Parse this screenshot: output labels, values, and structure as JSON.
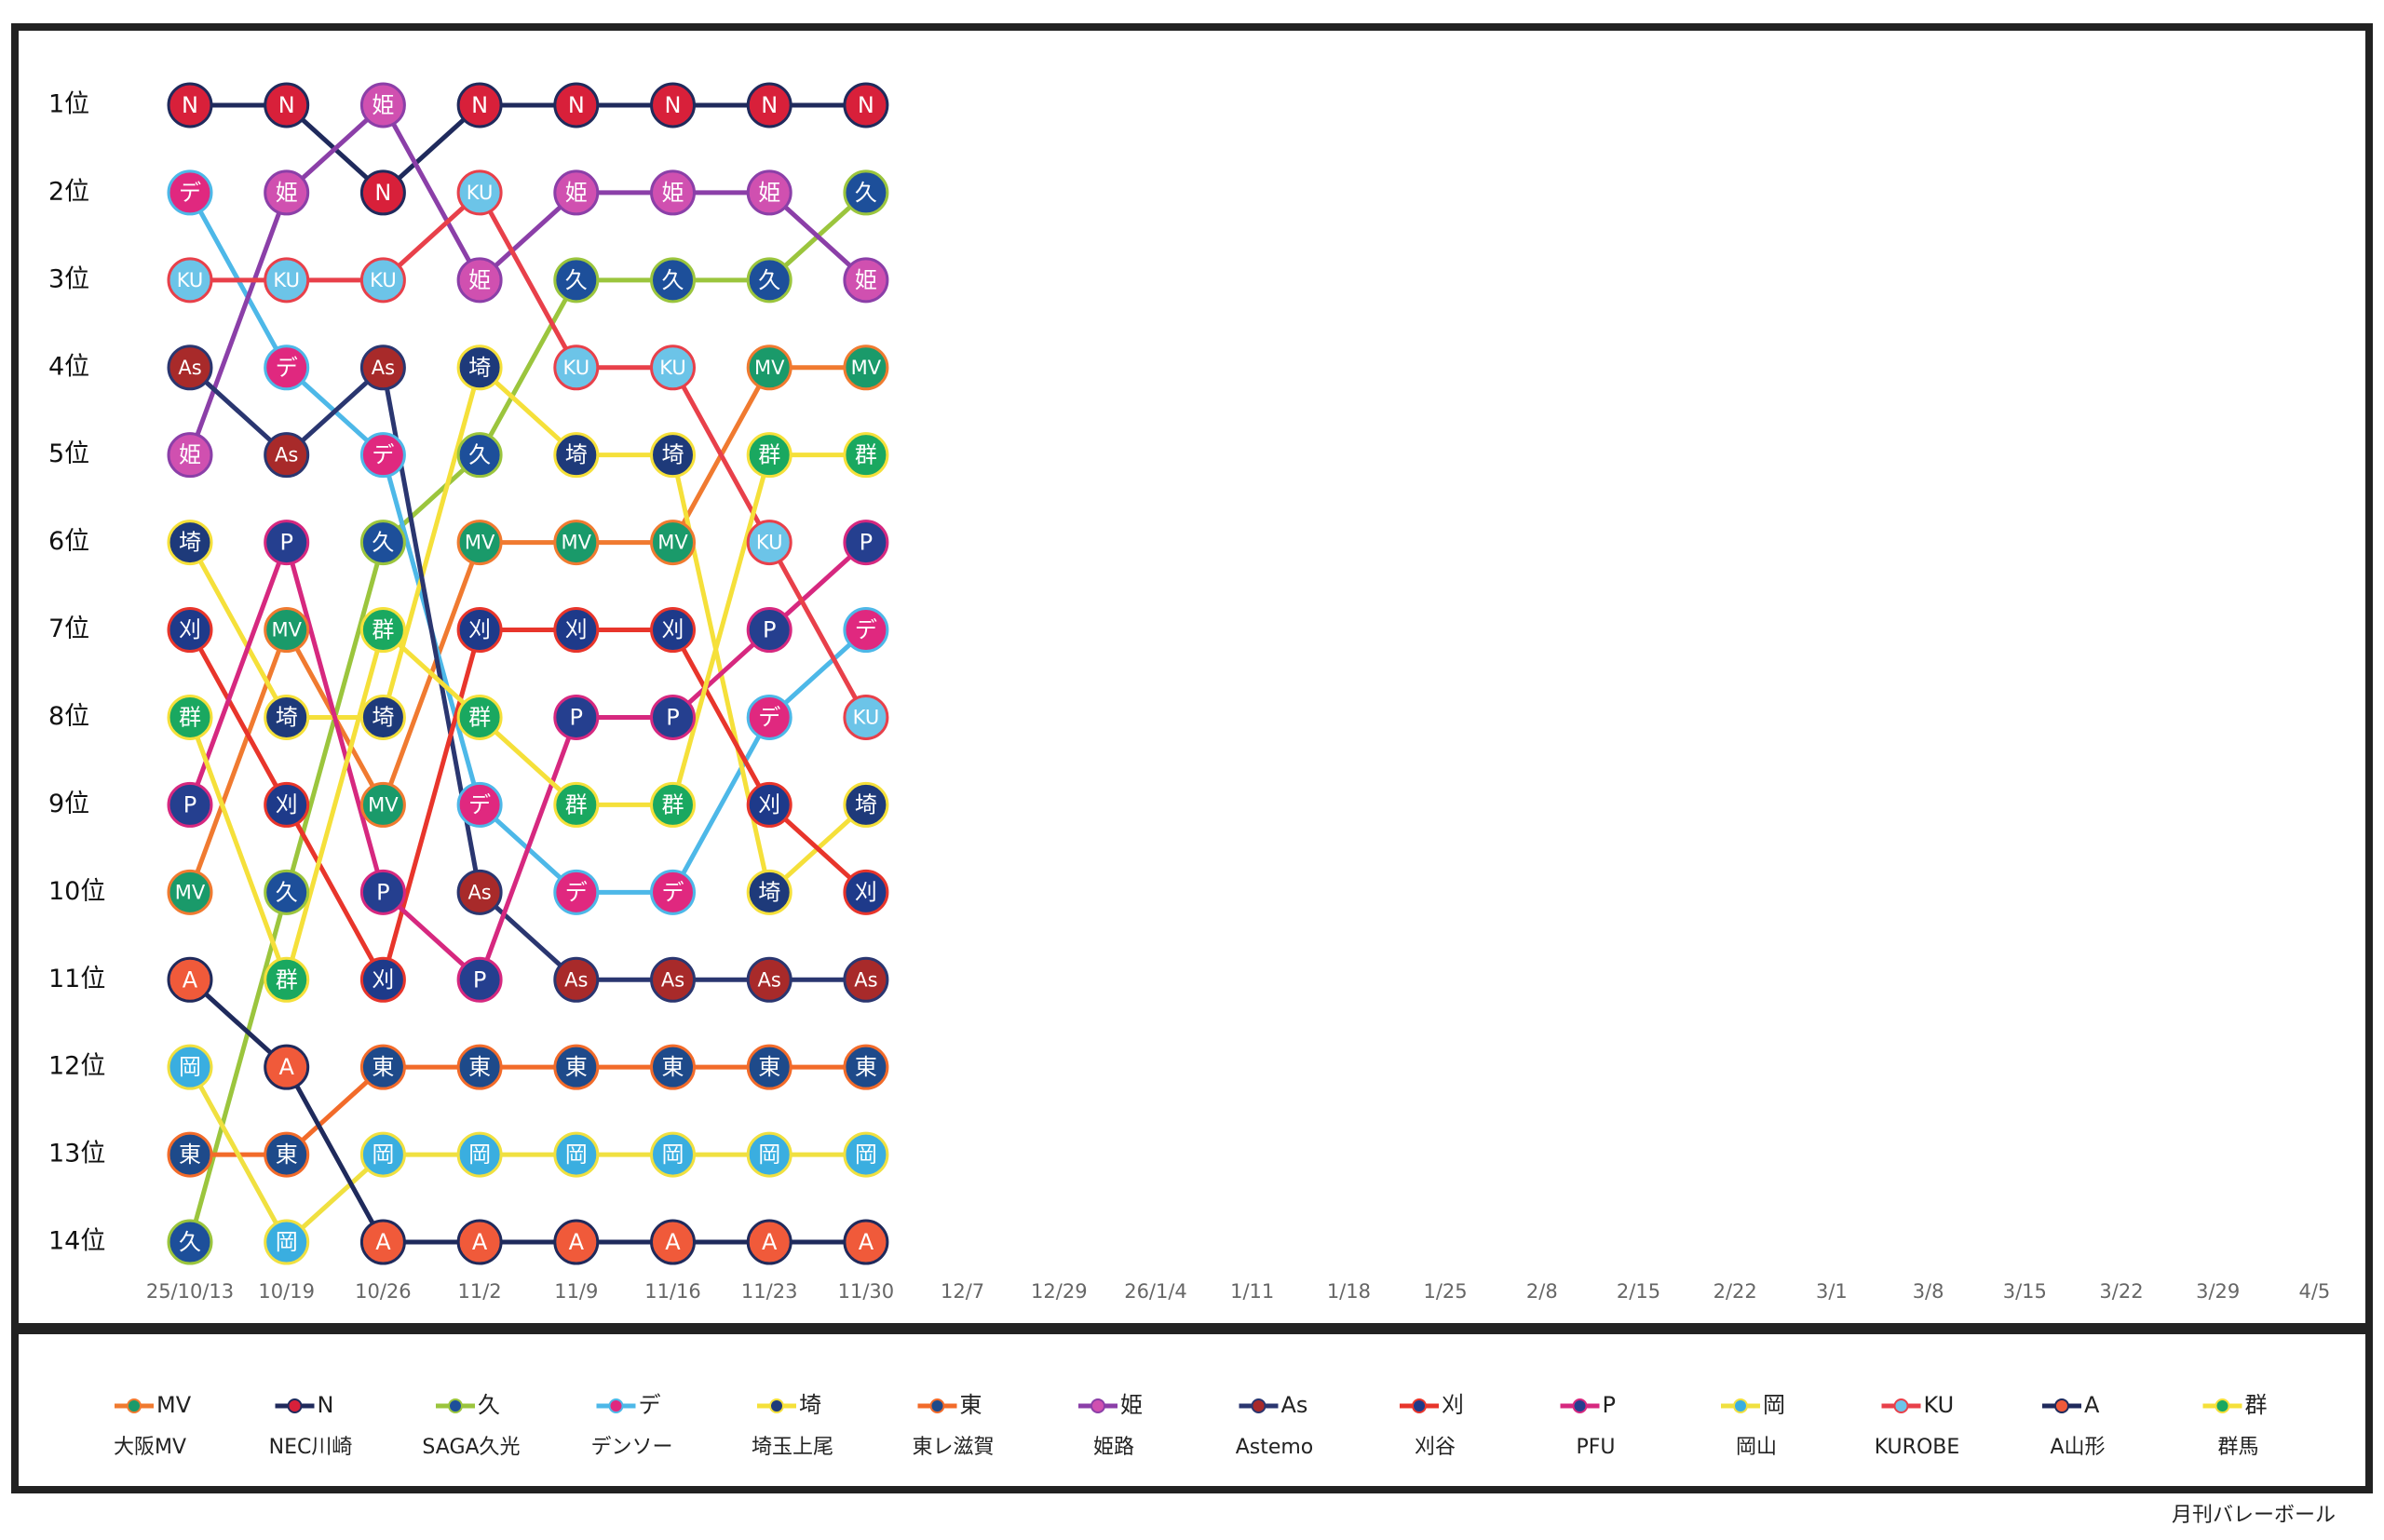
{
  "chart_data": {
    "type": "bump",
    "categories": [
      "25/10/13",
      "10/19",
      "10/26",
      "11/2",
      "11/9",
      "11/16",
      "11/23",
      "11/30",
      "12/7",
      "12/29",
      "26/1/4",
      "1/11",
      "1/18",
      "1/25",
      "2/8",
      "2/15",
      "2/22",
      "3/1",
      "3/8",
      "3/15",
      "3/22",
      "3/29",
      "4/5"
    ],
    "ylim": [
      0.5,
      14.5
    ],
    "y_inverted": true,
    "yticks": [
      {
        "value": 1,
        "label": "1位"
      },
      {
        "value": 2,
        "label": "2位"
      },
      {
        "value": 3,
        "label": "3位"
      },
      {
        "value": 4,
        "label": "4位"
      },
      {
        "value": 5,
        "label": "5位"
      },
      {
        "value": 6,
        "label": "6位"
      },
      {
        "value": 7,
        "label": "7位"
      },
      {
        "value": 8,
        "label": "8位"
      },
      {
        "value": 9,
        "label": "9位"
      },
      {
        "value": 10,
        "label": "10位"
      },
      {
        "value": 11,
        "label": "11位"
      },
      {
        "value": 12,
        "label": "12位"
      },
      {
        "value": 13,
        "label": "13位"
      },
      {
        "value": 14,
        "label": "14位"
      }
    ],
    "series": [
      {
        "name": "大阪MV",
        "label": "MV",
        "color": "#f07a30",
        "marker_color": "#1a9a6a",
        "values": [
          10,
          7,
          9,
          6,
          6,
          6,
          4,
          4,
          null,
          null,
          null,
          null,
          null,
          null,
          null,
          null,
          null,
          null,
          null,
          null,
          null,
          null,
          null
        ]
      },
      {
        "name": "NEC川崎",
        "label": "N",
        "color": "#1f2a5c",
        "marker_color": "#d8203a",
        "values": [
          1,
          1,
          2,
          1,
          1,
          1,
          1,
          1,
          null,
          null,
          null,
          null,
          null,
          null,
          null,
          null,
          null,
          null,
          null,
          null,
          null,
          null,
          null
        ]
      },
      {
        "name": "SAGA久光",
        "label": "久",
        "color": "#9bc53d",
        "marker_color": "#1d4f9a",
        "values": [
          14,
          10,
          6,
          5,
          3,
          3,
          3,
          2,
          null,
          null,
          null,
          null,
          null,
          null,
          null,
          null,
          null,
          null,
          null,
          null,
          null,
          null,
          null
        ]
      },
      {
        "name": "デンソー",
        "label": "デ",
        "color": "#4db8e8",
        "marker_color": "#e0287f",
        "values": [
          2,
          4,
          5,
          9,
          10,
          10,
          8,
          7,
          null,
          null,
          null,
          null,
          null,
          null,
          null,
          null,
          null,
          null,
          null,
          null,
          null,
          null,
          null
        ]
      },
      {
        "name": "埼玉上尾",
        "label": "埼",
        "color": "#f5e03a",
        "marker_color": "#1e3a7a",
        "values": [
          6,
          8,
          8,
          4,
          5,
          5,
          10,
          9,
          null,
          null,
          null,
          null,
          null,
          null,
          null,
          null,
          null,
          null,
          null,
          null,
          null,
          null,
          null
        ]
      },
      {
        "name": "東レ滋賀",
        "label": "東",
        "color": "#f26b2a",
        "marker_color": "#1e4a8a",
        "values": [
          13,
          13,
          12,
          12,
          12,
          12,
          12,
          12,
          null,
          null,
          null,
          null,
          null,
          null,
          null,
          null,
          null,
          null,
          null,
          null,
          null,
          null,
          null
        ]
      },
      {
        "name": "姫路",
        "label": "姫",
        "color": "#8b3fa8",
        "marker_color": "#d050b0",
        "values": [
          5,
          2,
          1,
          3,
          2,
          2,
          2,
          3,
          null,
          null,
          null,
          null,
          null,
          null,
          null,
          null,
          null,
          null,
          null,
          null,
          null,
          null,
          null
        ]
      },
      {
        "name": "Astemo",
        "label": "As",
        "color": "#2a3670",
        "marker_color": "#a82a2a",
        "values": [
          4,
          5,
          4,
          10,
          11,
          11,
          11,
          11,
          null,
          null,
          null,
          null,
          null,
          null,
          null,
          null,
          null,
          null,
          null,
          null,
          null,
          null,
          null
        ]
      },
      {
        "name": "刈谷",
        "label": "刈",
        "color": "#e8352b",
        "marker_color": "#1e3a8a",
        "values": [
          7,
          9,
          11,
          7,
          7,
          7,
          9,
          10,
          null,
          null,
          null,
          null,
          null,
          null,
          null,
          null,
          null,
          null,
          null,
          null,
          null,
          null,
          null
        ]
      },
      {
        "name": "PFU",
        "label": "P",
        "color": "#d6287f",
        "marker_color": "#253f8f",
        "values": [
          9,
          6,
          10,
          11,
          8,
          8,
          7,
          6,
          null,
          null,
          null,
          null,
          null,
          null,
          null,
          null,
          null,
          null,
          null,
          null,
          null,
          null,
          null
        ]
      },
      {
        "name": "岡山",
        "label": "岡",
        "color": "#f0e040",
        "marker_color": "#3aaee0",
        "values": [
          12,
          14,
          13,
          13,
          13,
          13,
          13,
          13,
          null,
          null,
          null,
          null,
          null,
          null,
          null,
          null,
          null,
          null,
          null,
          null,
          null,
          null,
          null
        ]
      },
      {
        "name": "KUROBE",
        "label": "KU",
        "color": "#e8404a",
        "marker_color": "#6cc4e8",
        "values": [
          3,
          3,
          3,
          2,
          4,
          4,
          6,
          8,
          null,
          null,
          null,
          null,
          null,
          null,
          null,
          null,
          null,
          null,
          null,
          null,
          null,
          null,
          null
        ]
      },
      {
        "name": "A山形",
        "label": "A",
        "color": "#1f2a5c",
        "marker_color": "#f05a3a",
        "values": [
          11,
          12,
          14,
          14,
          14,
          14,
          14,
          14,
          null,
          null,
          null,
          null,
          null,
          null,
          null,
          null,
          null,
          null,
          null,
          null,
          null,
          null,
          null
        ]
      },
      {
        "name": "群馬",
        "label": "群",
        "color": "#f5e03a",
        "marker_color": "#1aa860",
        "values": [
          8,
          11,
          7,
          8,
          9,
          9,
          5,
          5,
          null,
          null,
          null,
          null,
          null,
          null,
          null,
          null,
          null,
          null,
          null,
          null,
          null,
          null,
          null
        ]
      }
    ],
    "source": "月刊バレーボール"
  }
}
